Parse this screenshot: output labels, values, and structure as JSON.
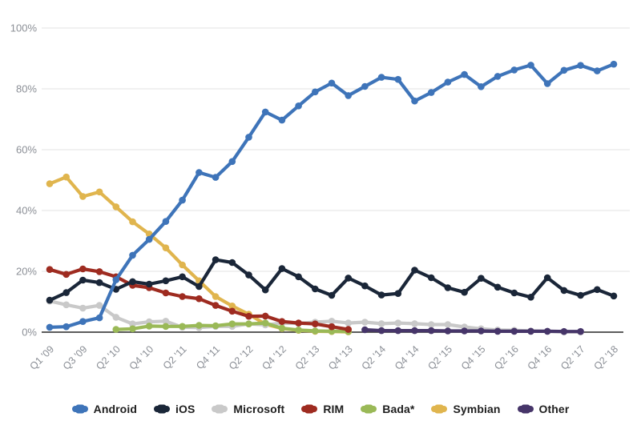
{
  "chart_data": {
    "type": "line",
    "title": "",
    "xlabel": "",
    "ylabel": "",
    "ylim": [
      0,
      100
    ],
    "yticks": [
      0,
      20,
      40,
      60,
      80,
      100
    ],
    "ytick_labels": [
      "0%",
      "20%",
      "40%",
      "60%",
      "80%",
      "100%"
    ],
    "grid": true,
    "legend_position": "bottom",
    "x_tick_shown_every": 2,
    "x_labels": [
      "Q1 '09",
      "Q2 '09",
      "Q3 '09",
      "Q4 '09",
      "Q2 '10",
      "Q3 '10",
      "Q4 '10",
      "Q1 '11",
      "Q2 '11",
      "Q3 '11",
      "Q4 '11",
      "Q1 '12",
      "Q2 '12",
      "Q3 '12",
      "Q4 '12",
      "Q1 '13",
      "Q2 '13",
      "Q3 '13",
      "Q4 '13",
      "Q1 '14",
      "Q2 '14",
      "Q3 '14",
      "Q4 '14",
      "Q1 '15",
      "Q2 '15",
      "Q3 '15",
      "Q4 '15",
      "Q1 '16",
      "Q2 '16",
      "Q3 '16",
      "Q4 '16",
      "Q1 '17",
      "Q2 '17",
      "Q4 '17",
      "Q2 '18"
    ],
    "shown_x_tick_labels": [
      "Q1 '09",
      "Q3 '09",
      "Q2 '10",
      "Q4 '10",
      "Q2 '11",
      "Q4 '11",
      "Q2 '12",
      "Q4 '12",
      "Q2 '13",
      "Q4 '13",
      "Q2 '14",
      "Q4 '14",
      "Q2 '15",
      "Q4 '15",
      "Q2 '16",
      "Q4 '16",
      "Q2 '17",
      "Q2 '18"
    ],
    "series": [
      {
        "name": "Android",
        "color": "#3e74b9",
        "values": [
          1.6,
          1.8,
          3.5,
          4.7,
          17.2,
          25.3,
          30.5,
          36.4,
          43.4,
          52.5,
          50.9,
          56.1,
          64.1,
          72.4,
          69.7,
          74.4,
          79.0,
          81.9,
          77.8,
          80.8,
          83.8,
          83.1,
          76.0,
          78.8,
          82.2,
          84.7,
          80.7,
          84.1,
          86.2,
          87.8,
          81.7,
          86.1,
          87.7,
          85.9,
          88.1
        ]
      },
      {
        "name": "iOS",
        "color": "#1a2638",
        "values": [
          10.5,
          13.0,
          17.1,
          16.3,
          14.1,
          16.6,
          15.8,
          16.9,
          18.2,
          15.0,
          23.8,
          22.9,
          18.8,
          13.9,
          20.9,
          18.2,
          14.2,
          12.1,
          17.8,
          15.2,
          12.2,
          12.7,
          20.4,
          17.9,
          14.6,
          13.1,
          17.7,
          14.8,
          12.9,
          11.5,
          17.9,
          13.7,
          12.1,
          14.0,
          11.9
        ]
      },
      {
        "name": "Microsoft",
        "color": "#c9c9c9",
        "values": [
          10.2,
          9.0,
          7.9,
          8.8,
          4.9,
          2.7,
          3.4,
          3.6,
          1.6,
          1.5,
          1.9,
          1.9,
          2.7,
          2.4,
          3.0,
          2.9,
          3.3,
          3.6,
          3.0,
          3.3,
          2.8,
          3.0,
          2.8,
          2.5,
          2.5,
          1.7,
          1.1,
          0.7,
          0.6,
          0.4,
          0.3,
          0.1,
          0.1,
          null,
          null
        ]
      },
      {
        "name": "RIM",
        "color": "#9e2b20",
        "values": [
          20.6,
          19.0,
          20.8,
          19.9,
          18.2,
          15.4,
          14.6,
          12.9,
          11.7,
          11.0,
          8.8,
          6.9,
          5.2,
          5.3,
          3.5,
          3.0,
          2.7,
          1.8,
          0.9,
          null,
          null,
          null,
          null,
          null,
          null,
          null,
          null,
          null,
          null,
          null,
          null,
          null,
          null,
          null,
          null
        ]
      },
      {
        "name": "Bada*",
        "color": "#9ab957",
        "values": [
          null,
          null,
          null,
          null,
          0.9,
          1.1,
          2.0,
          1.9,
          1.9,
          2.2,
          2.1,
          2.7,
          2.7,
          3.0,
          1.3,
          0.7,
          0.4,
          0.3,
          0.2,
          null,
          null,
          null,
          null,
          null,
          null,
          null,
          null,
          null,
          null,
          null,
          null,
          null,
          null,
          null,
          null
        ]
      },
      {
        "name": "Symbian",
        "color": "#e0b54e",
        "values": [
          48.8,
          51.0,
          44.6,
          46.1,
          41.2,
          36.3,
          32.3,
          27.7,
          22.1,
          16.9,
          11.7,
          8.6,
          5.9,
          2.6,
          1.2,
          0.6,
          0.3,
          0.2,
          0.1,
          null,
          null,
          null,
          null,
          null,
          null,
          null,
          null,
          null,
          null,
          null,
          null,
          null,
          null,
          null,
          null
        ]
      },
      {
        "name": "Other",
        "color": "#463569",
        "values": [
          null,
          null,
          null,
          null,
          null,
          null,
          null,
          null,
          null,
          null,
          null,
          null,
          null,
          null,
          null,
          null,
          null,
          null,
          null,
          0.8,
          0.5,
          0.5,
          0.5,
          0.5,
          0.4,
          0.4,
          0.4,
          0.3,
          0.3,
          0.3,
          0.3,
          0.2,
          0.2,
          null,
          null
        ]
      }
    ]
  },
  "axis_style": {
    "tick_label_color": "#8b8f96",
    "gridline_color": "#e3e3e3",
    "baseline_color": "#454545",
    "background": "#ffffff"
  }
}
